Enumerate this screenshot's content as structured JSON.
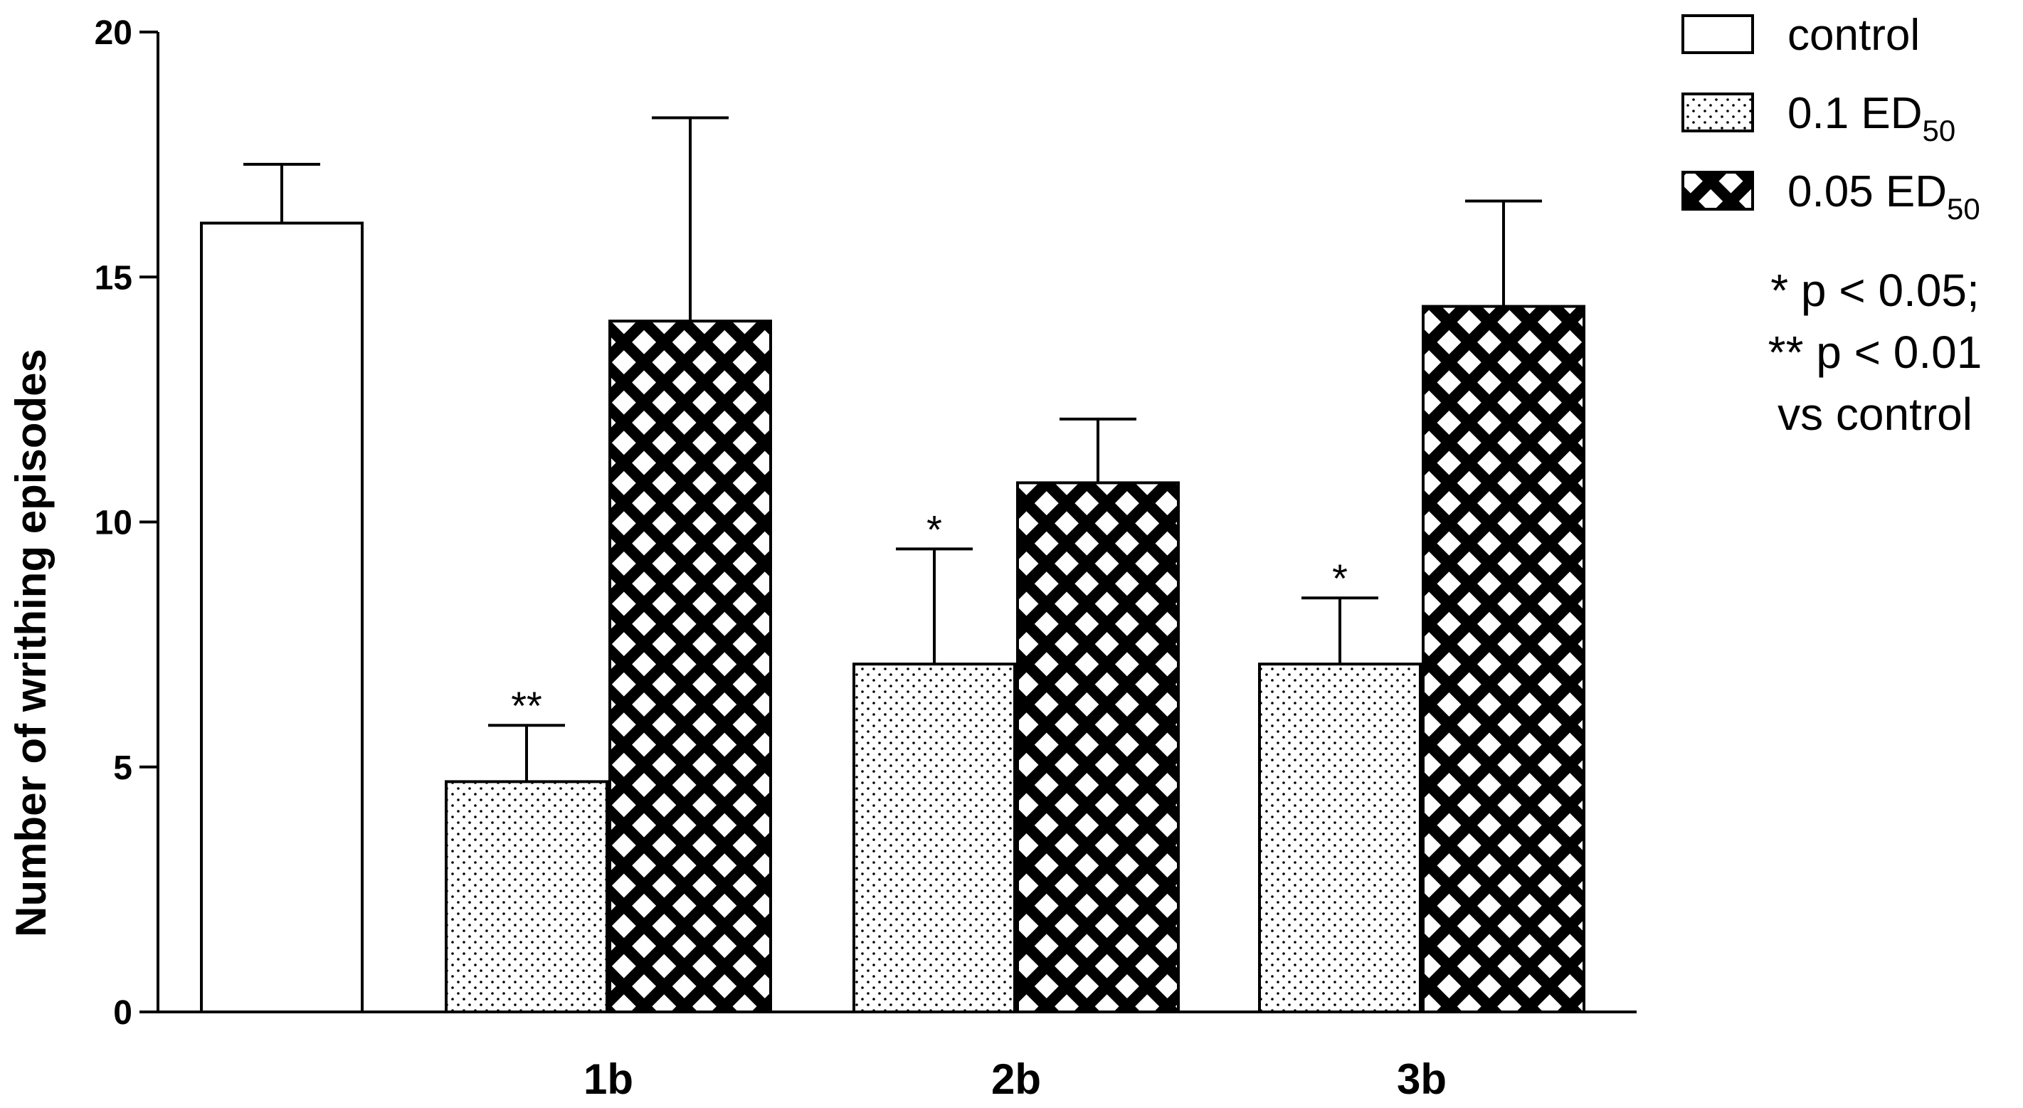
{
  "chart_data": {
    "type": "bar",
    "ylabel": "Number of writhing episodes",
    "xlabel": "",
    "ylim": [
      0,
      20
    ],
    "yticks": [
      "0",
      "5",
      "10",
      "15",
      "20"
    ],
    "grid": false,
    "legend_position": "top-right",
    "legend": [
      {
        "label": "control",
        "pattern": "none"
      },
      {
        "label": "0.1 ED",
        "sub": "50",
        "pattern": "dots"
      },
      {
        "label": "0.05 ED",
        "sub": "50",
        "pattern": "crosshatch"
      }
    ],
    "groups": [
      {
        "label": "",
        "bars": [
          {
            "series": "control",
            "value": 16.1,
            "error": 1.2,
            "sig": ""
          }
        ]
      },
      {
        "label": "1b",
        "bars": [
          {
            "series": "0.1 ED50",
            "value": 4.7,
            "error": 1.15,
            "sig": "**"
          },
          {
            "series": "0.05 ED50",
            "value": 14.1,
            "error": 4.15,
            "sig": ""
          }
        ]
      },
      {
        "label": "2b",
        "bars": [
          {
            "series": "0.1 ED50",
            "value": 7.1,
            "error": 2.35,
            "sig": "*"
          },
          {
            "series": "0.05 ED50",
            "value": 10.8,
            "error": 1.3,
            "sig": ""
          }
        ]
      },
      {
        "label": "3b",
        "bars": [
          {
            "series": "0.1 ED50",
            "value": 7.1,
            "error": 1.35,
            "sig": "*"
          },
          {
            "series": "0.05 ED50",
            "value": 14.4,
            "error": 2.15,
            "sig": ""
          }
        ]
      }
    ],
    "note": [
      "* p < 0.05;",
      "** p < 0.01",
      "vs control"
    ]
  }
}
